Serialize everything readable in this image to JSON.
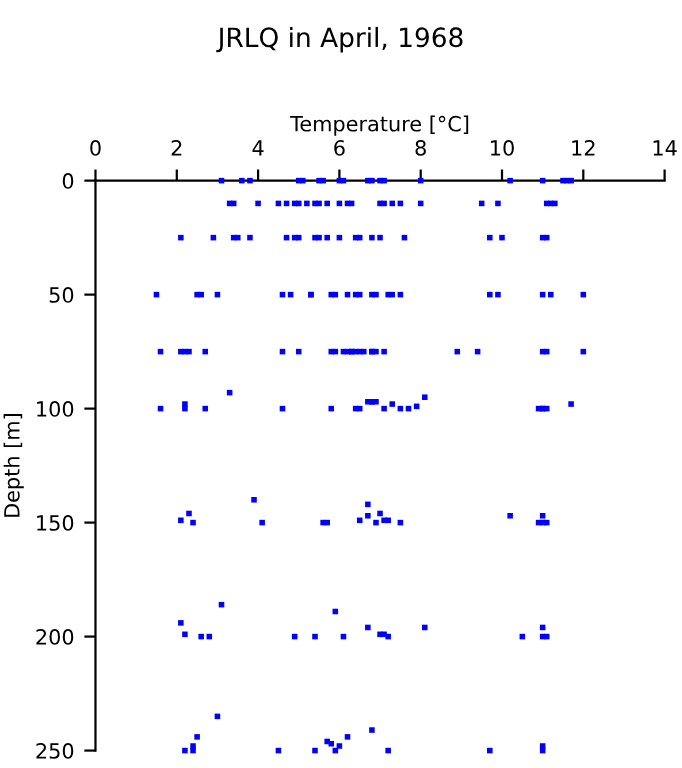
{
  "chart_data": {
    "type": "scatter",
    "title": "JRLQ in April, 1968",
    "xlabel": "Temperature [°C]",
    "ylabel": "Depth [m]",
    "xlim": [
      0,
      14
    ],
    "xticks": [
      0,
      2,
      4,
      6,
      8,
      10,
      12,
      14
    ],
    "ylim": [
      250,
      0
    ],
    "yticks": [
      0,
      50,
      100,
      150,
      200,
      250
    ],
    "grid": false,
    "legend": false,
    "marker": "square",
    "series": [
      {
        "color": "#0000ff",
        "x": [
          3.1,
          3.6,
          3.8,
          5.0,
          5.1,
          5.5,
          5.6,
          6.0,
          6.1,
          6.7,
          6.8,
          7.0,
          7.1,
          8.0,
          10.2,
          11.0,
          11.5,
          11.6,
          11.7,
          3.3,
          3.4,
          4.0,
          4.5,
          4.7,
          4.9,
          5.0,
          5.2,
          5.4,
          5.5,
          5.7,
          6.0,
          6.2,
          6.3,
          7.0,
          7.1,
          7.3,
          7.5,
          8.0,
          9.5,
          9.9,
          11.1,
          11.2,
          11.3,
          2.1,
          2.9,
          3.4,
          3.5,
          3.8,
          4.7,
          4.9,
          5.0,
          5.4,
          5.5,
          5.7,
          6.0,
          6.4,
          6.5,
          6.8,
          7.0,
          7.6,
          9.7,
          10.0,
          11.0,
          11.1,
          1.5,
          2.5,
          2.6,
          3.0,
          4.6,
          4.8,
          5.3,
          5.3,
          5.8,
          5.9,
          6.2,
          6.4,
          6.5,
          6.8,
          6.9,
          7.2,
          7.3,
          7.5,
          9.7,
          9.9,
          11.0,
          11.2,
          12.0,
          1.6,
          2.1,
          2.2,
          2.3,
          2.7,
          4.6,
          5.0,
          5.8,
          5.9,
          6.1,
          6.2,
          6.3,
          6.3,
          6.4,
          6.5,
          6.6,
          6.8,
          6.8,
          6.9,
          7.1,
          8.9,
          9.4,
          11.0,
          11.1,
          12.0,
          1.6,
          2.2,
          2.2,
          2.7,
          3.3,
          4.6,
          5.8,
          6.4,
          6.5,
          6.7,
          6.8,
          6.8,
          6.9,
          7.1,
          7.3,
          7.5,
          7.7,
          7.9,
          8.1,
          10.9,
          11.0,
          11.0,
          11.1,
          11.7,
          2.1,
          2.3,
          2.4,
          3.9,
          4.1,
          5.6,
          5.7,
          6.5,
          6.7,
          6.7,
          6.9,
          7.0,
          7.1,
          7.2,
          7.5,
          10.2,
          10.9,
          11.0,
          11.0,
          11.1,
          2.1,
          2.2,
          2.6,
          2.8,
          3.1,
          4.9,
          5.4,
          5.9,
          6.1,
          6.7,
          7.0,
          7.1,
          7.2,
          8.1,
          10.5,
          11.0,
          11.0,
          11.1,
          2.2,
          2.4,
          2.4,
          2.5,
          3.0,
          4.5,
          5.4,
          5.7,
          5.8,
          5.9,
          6.0,
          6.2,
          6.8,
          7.2,
          9.7,
          11.0,
          11.0
        ],
        "values": [
          0,
          0,
          0,
          0,
          0,
          0,
          0,
          0,
          0,
          0,
          0,
          0,
          0,
          0,
          0,
          0,
          0,
          0,
          0,
          10,
          10,
          10,
          10,
          10,
          10,
          10,
          10,
          10,
          10,
          10,
          10,
          10,
          10,
          10,
          10,
          10,
          10,
          10,
          10,
          10,
          10,
          10,
          10,
          25,
          25,
          25,
          25,
          25,
          25,
          25,
          25,
          25,
          25,
          25,
          25,
          25,
          25,
          25,
          25,
          25,
          25,
          25,
          25,
          25,
          50,
          50,
          50,
          50,
          50,
          50,
          50,
          50,
          50,
          50,
          50,
          50,
          50,
          50,
          50,
          50,
          50,
          50,
          50,
          50,
          50,
          50,
          50,
          75,
          75,
          75,
          75,
          75,
          75,
          75,
          75,
          75,
          75,
          75,
          75,
          75,
          75,
          75,
          75,
          75,
          75,
          75,
          75,
          75,
          75,
          75,
          75,
          75,
          100,
          98,
          100,
          100,
          93,
          100,
          100,
          100,
          100,
          97,
          97,
          97,
          97,
          100,
          98,
          100,
          100,
          99,
          95,
          100,
          100,
          100,
          100,
          98,
          149,
          146,
          150,
          140,
          150,
          150,
          150,
          149,
          142,
          147,
          150,
          146,
          149,
          149,
          150,
          147,
          150,
          147,
          150,
          150,
          194,
          199,
          200,
          200,
          186,
          200,
          200,
          189,
          200,
          196,
          199,
          199,
          200,
          196,
          200,
          196,
          200,
          200,
          250,
          250,
          248,
          244,
          235,
          250,
          250,
          246,
          247,
          250,
          248,
          244,
          241,
          250,
          250,
          248,
          250
        ]
      }
    ]
  }
}
